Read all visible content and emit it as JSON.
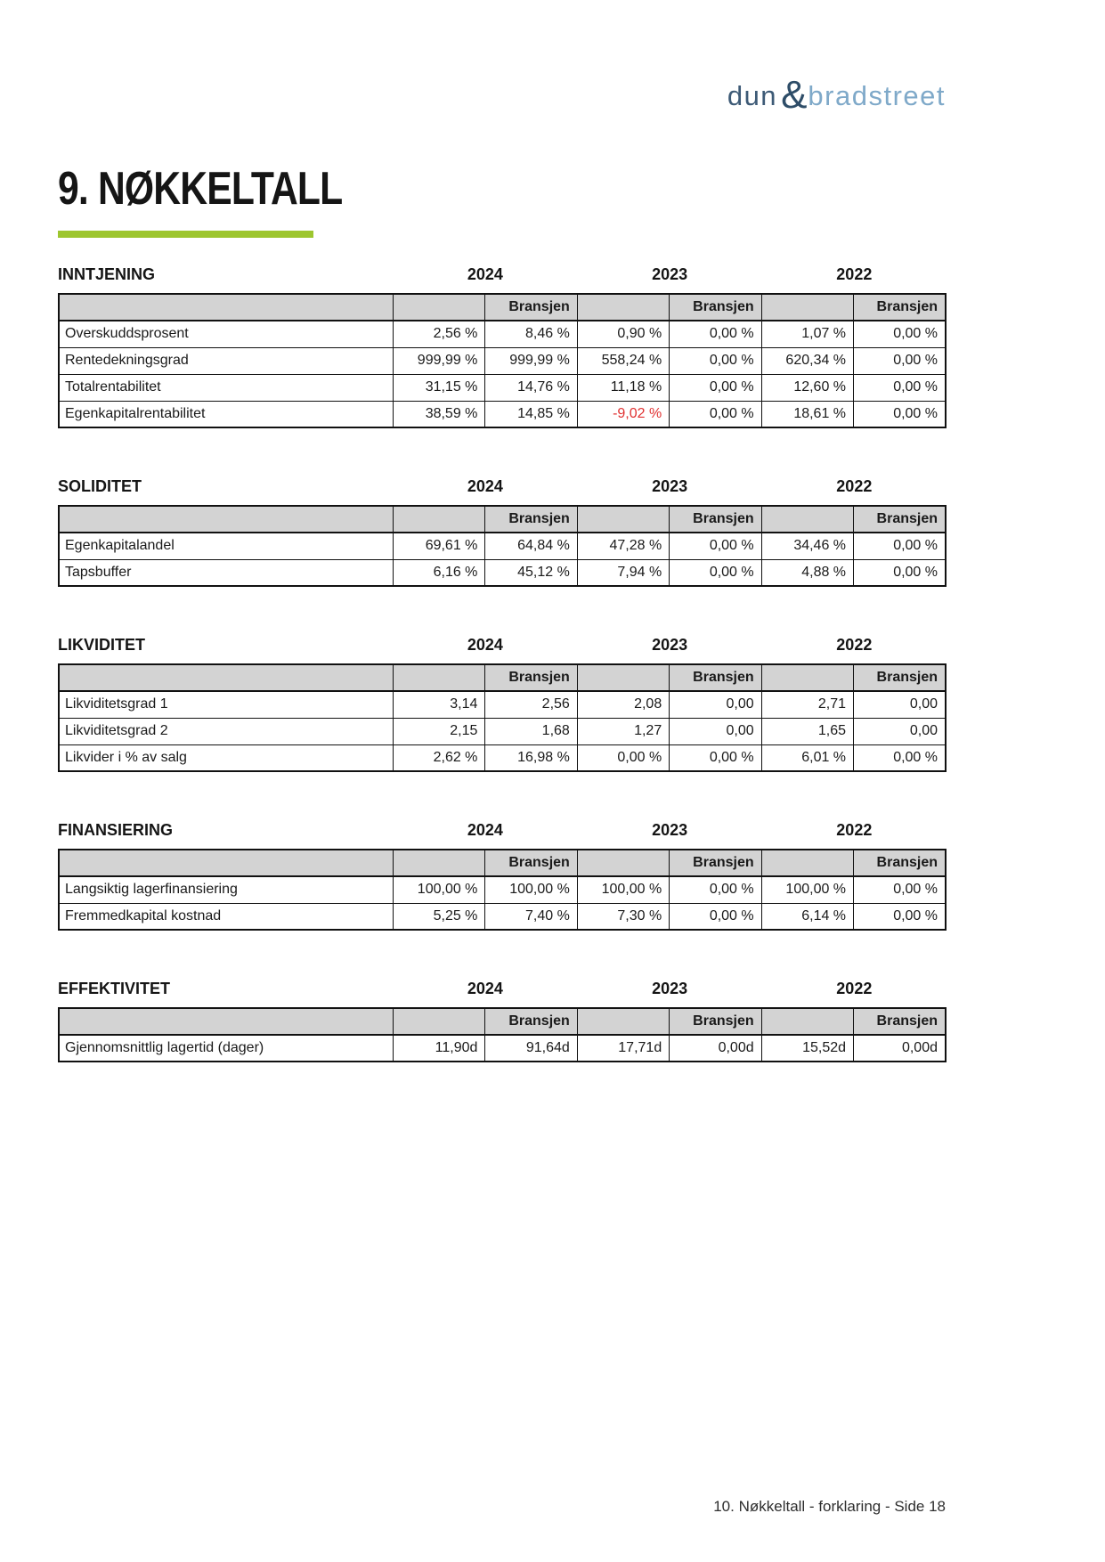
{
  "logo": {
    "dun": "dun",
    "ampersand": "&",
    "bradstreet": "bradstreet"
  },
  "title": "9. NØKKELTALL",
  "industry_label": "Bransjen",
  "years": [
    "2024",
    "2023",
    "2022"
  ],
  "sections": [
    {
      "title": "INNTJENING",
      "rows": [
        {
          "label": "Overskuddsprosent",
          "values": [
            "2,56 %",
            "8,46 %",
            "0,90 %",
            "0,00 %",
            "1,07 %",
            "0,00 %"
          ]
        },
        {
          "label": "Rentedekningsgrad",
          "values": [
            "999,99 %",
            "999,99 %",
            "558,24 %",
            "0,00 %",
            "620,34 %",
            "0,00 %"
          ]
        },
        {
          "label": "Totalrentabilitet",
          "values": [
            "31,15 %",
            "14,76 %",
            "11,18 %",
            "0,00 %",
            "12,60 %",
            "0,00 %"
          ]
        },
        {
          "label": "Egenkapitalrentabilitet",
          "values": [
            "38,59 %",
            "14,85 %",
            "-9,02 %",
            "0,00 %",
            "18,61 %",
            "0,00 %"
          ]
        }
      ]
    },
    {
      "title": "SOLIDITET",
      "rows": [
        {
          "label": "Egenkapitalandel",
          "values": [
            "69,61 %",
            "64,84 %",
            "47,28 %",
            "0,00 %",
            "34,46 %",
            "0,00 %"
          ]
        },
        {
          "label": "Tapsbuffer",
          "values": [
            "6,16 %",
            "45,12 %",
            "7,94 %",
            "0,00 %",
            "4,88 %",
            "0,00 %"
          ]
        }
      ]
    },
    {
      "title": "LIKVIDITET",
      "rows": [
        {
          "label": "Likviditetsgrad 1",
          "values": [
            "3,14",
            "2,56",
            "2,08",
            "0,00",
            "2,71",
            "0,00"
          ]
        },
        {
          "label": "Likviditetsgrad 2",
          "values": [
            "2,15",
            "1,68",
            "1,27",
            "0,00",
            "1,65",
            "0,00"
          ]
        },
        {
          "label": "Likvider i % av salg",
          "values": [
            "2,62 %",
            "16,98 %",
            "0,00 %",
            "0,00 %",
            "6,01 %",
            "0,00 %"
          ]
        }
      ]
    },
    {
      "title": "FINANSIERING",
      "rows": [
        {
          "label": "Langsiktig lagerfinansiering",
          "values": [
            "100,00 %",
            "100,00 %",
            "100,00 %",
            "0,00 %",
            "100,00 %",
            "0,00 %"
          ]
        },
        {
          "label": "Fremmedkapital kostnad",
          "values": [
            "5,25 %",
            "7,40 %",
            "7,30 %",
            "0,00 %",
            "6,14 %",
            "0,00 %"
          ]
        }
      ]
    },
    {
      "title": "EFFEKTIVITET",
      "rows": [
        {
          "label": "Gjennomsnittlig lagertid (dager)",
          "values": [
            "11,90d",
            "91,64d",
            "17,71d",
            "0,00d",
            "15,52d",
            "0,00d"
          ]
        }
      ]
    }
  ],
  "footer": "10. Nøkkeltall - forklaring - Side 18",
  "colors": {
    "accent_green": "#9dc62f",
    "negative_red": "#e03131",
    "header_gray": "#d3d3d3",
    "logo_dark_blue": "#3d5a76",
    "logo_amp_blue": "#2e4d68",
    "logo_light_blue": "#7fa9c9",
    "border_black": "#111111"
  }
}
